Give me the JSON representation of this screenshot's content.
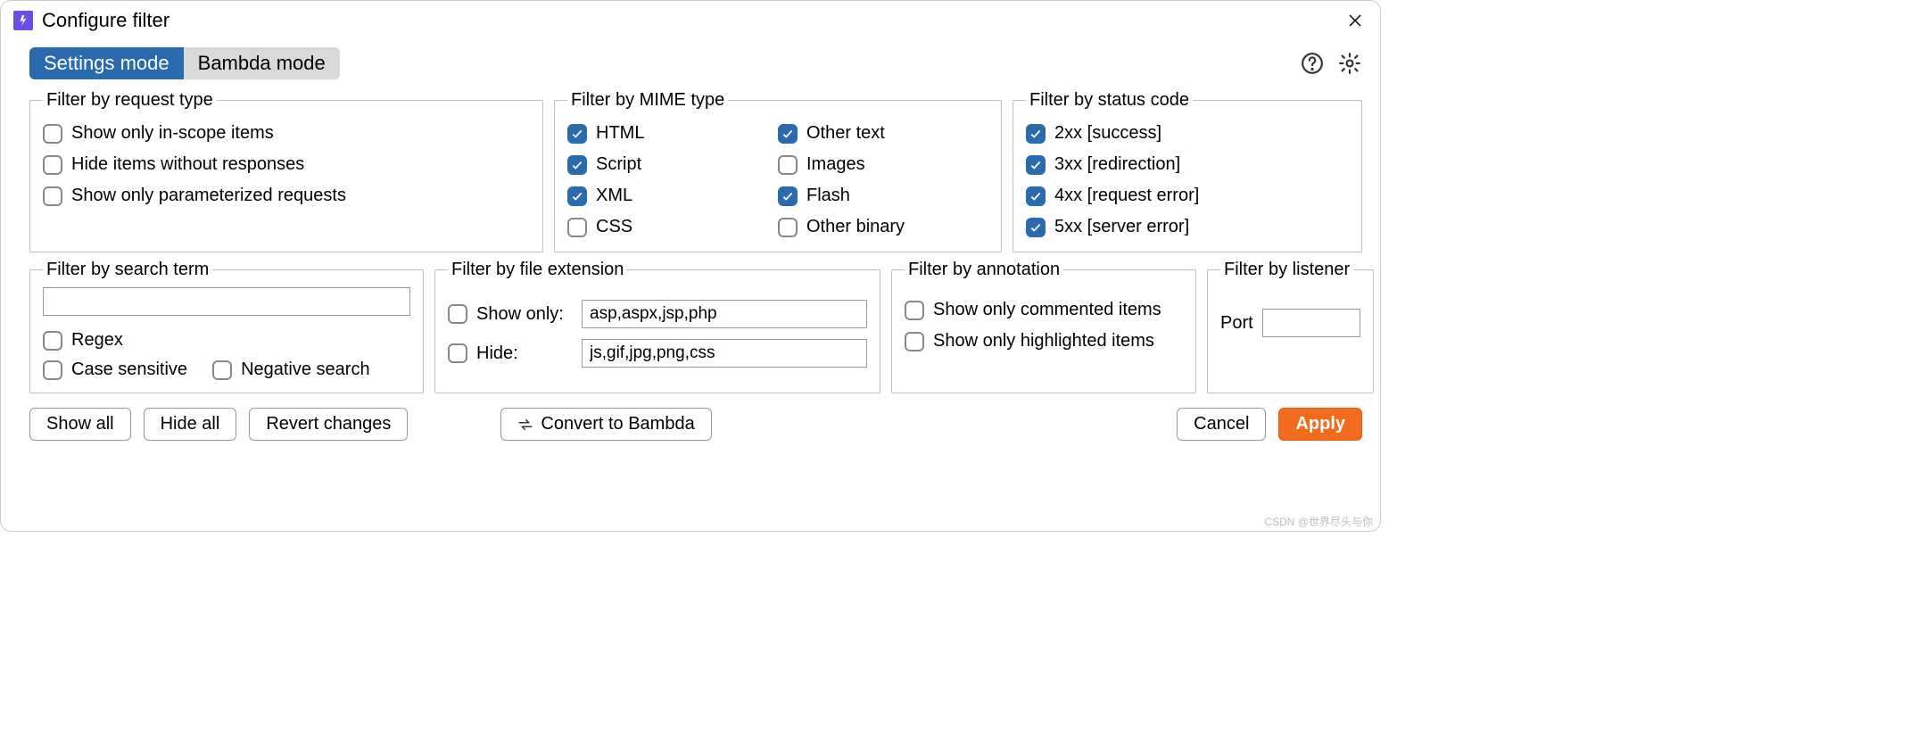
{
  "window": {
    "title": "Configure filter"
  },
  "modes": {
    "settings": "Settings mode",
    "bambda": "Bambda mode",
    "active": "settings"
  },
  "colors": {
    "accent": "#2a6bb0",
    "primary_btn": "#f26b1d"
  },
  "filter_request": {
    "legend": "Filter by request type",
    "items": [
      {
        "label": "Show only in-scope items",
        "checked": false
      },
      {
        "label": "Hide items without responses",
        "checked": false
      },
      {
        "label": "Show only parameterized requests",
        "checked": false
      }
    ]
  },
  "filter_mime": {
    "legend": "Filter by MIME type",
    "col1": [
      {
        "label": "HTML",
        "checked": true
      },
      {
        "label": "Script",
        "checked": true
      },
      {
        "label": "XML",
        "checked": true
      },
      {
        "label": "CSS",
        "checked": false
      }
    ],
    "col2": [
      {
        "label": "Other text",
        "checked": true
      },
      {
        "label": "Images",
        "checked": false
      },
      {
        "label": "Flash",
        "checked": true
      },
      {
        "label": "Other binary",
        "checked": false
      }
    ]
  },
  "filter_status": {
    "legend": "Filter by status code",
    "items": [
      {
        "label": "2xx  [success]",
        "checked": true
      },
      {
        "label": "3xx  [redirection]",
        "checked": true
      },
      {
        "label": "4xx  [request error]",
        "checked": true
      },
      {
        "label": "5xx  [server error]",
        "checked": true
      }
    ]
  },
  "filter_search": {
    "legend": "Filter by search term",
    "value": "",
    "regex": {
      "label": "Regex",
      "checked": false
    },
    "case_sensitive": {
      "label": "Case sensitive",
      "checked": false
    },
    "negative": {
      "label": "Negative search",
      "checked": false
    }
  },
  "filter_ext": {
    "legend": "Filter by file extension",
    "show_only": {
      "label": "Show only:",
      "checked": false,
      "value": "asp,aspx,jsp,php"
    },
    "hide": {
      "label": "Hide:",
      "checked": false,
      "value": "js,gif,jpg,png,css"
    }
  },
  "filter_annot": {
    "legend": "Filter by annotation",
    "commented": {
      "label": "Show only commented items",
      "checked": false
    },
    "highlighted": {
      "label": "Show only highlighted items",
      "checked": false
    }
  },
  "filter_listener": {
    "legend": "Filter by listener",
    "port_label": "Port",
    "port_value": ""
  },
  "buttons": {
    "show_all": "Show all",
    "hide_all": "Hide all",
    "revert": "Revert changes",
    "convert": "Convert to Bambda",
    "cancel": "Cancel",
    "apply": "Apply"
  },
  "watermark": "CSDN @世界尽头与你"
}
